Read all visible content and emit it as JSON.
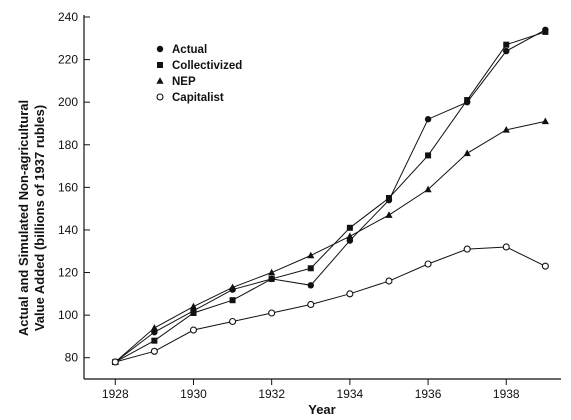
{
  "chart_data": {
    "type": "line",
    "title": "",
    "xlabel": "Year",
    "ylabel_lines": [
      "Actual and Simulated Non-agricultural",
      "Value Added (billions of 1937 rubles)"
    ],
    "x": [
      1928,
      1929,
      1930,
      1931,
      1932,
      1933,
      1934,
      1935,
      1936,
      1937,
      1938,
      1939
    ],
    "xlim": [
      1927.2,
      1939.4
    ],
    "ylim": [
      70,
      240
    ],
    "xticks": [
      1928,
      1930,
      1932,
      1934,
      1936,
      1938
    ],
    "xtick_labels": [
      "1928",
      "1930",
      "1932",
      "1934",
      "1936",
      "1938"
    ],
    "yticks": [
      80,
      100,
      120,
      140,
      160,
      180,
      200,
      220,
      240
    ],
    "ytick_labels": [
      "80",
      "100",
      "120",
      "140",
      "160",
      "180",
      "200",
      "220",
      "240"
    ],
    "legend_position": "top-left",
    "grid": false,
    "series": [
      {
        "name": "Actual",
        "marker": "filled-circle",
        "values": [
          78,
          92,
          102,
          112,
          117,
          114,
          135,
          154,
          192,
          200,
          224,
          234
        ]
      },
      {
        "name": "Collectivized",
        "marker": "filled-square",
        "values": [
          78,
          88,
          101,
          107,
          117,
          122,
          141,
          155,
          175,
          201,
          227,
          233
        ]
      },
      {
        "name": "NEP",
        "marker": "filled-triangle",
        "values": [
          78,
          94,
          104,
          113,
          120,
          128,
          137,
          147,
          159,
          176,
          187,
          191
        ]
      },
      {
        "name": "Capitalist",
        "marker": "open-circle",
        "values": [
          78,
          83,
          93,
          97,
          101,
          105,
          110,
          116,
          124,
          131,
          132,
          123
        ]
      }
    ]
  }
}
